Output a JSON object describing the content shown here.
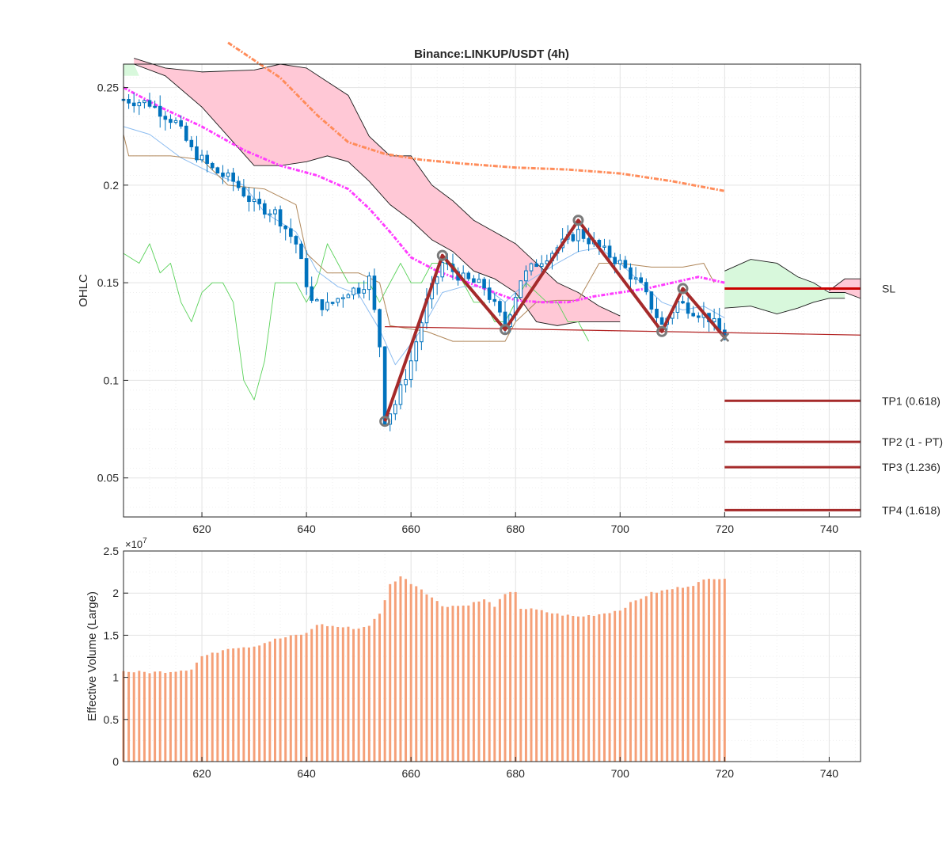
{
  "chart_data": [
    {
      "type": "candlestick",
      "title": "Binance:LINKUP/USDT (4h)",
      "ylabel": "OHLC",
      "xlim": [
        605,
        746
      ],
      "ylim": [
        0.03,
        0.262
      ],
      "x_ticks": [
        620,
        640,
        660,
        680,
        700,
        720,
        740
      ],
      "y_ticks": [
        0.05,
        0.1,
        0.15,
        0.2,
        0.25
      ],
      "y_tick_labels": [
        "0.05",
        "0.1",
        "0.15",
        "0.2",
        "0.25"
      ],
      "grid": true,
      "candle_x_range": [
        605,
        720
      ],
      "price_path": [
        [
          605,
          0.244
        ],
        [
          610,
          0.242
        ],
        [
          615,
          0.232
        ],
        [
          618,
          0.218
        ],
        [
          622,
          0.208
        ],
        [
          626,
          0.202
        ],
        [
          630,
          0.19
        ],
        [
          634,
          0.186
        ],
        [
          638,
          0.17
        ],
        [
          641,
          0.14
        ],
        [
          644,
          0.138
        ],
        [
          648,
          0.146
        ],
        [
          650,
          0.147
        ],
        [
          652,
          0.152
        ],
        [
          654,
          0.118
        ],
        [
          655,
          0.08
        ],
        [
          657,
          0.088
        ],
        [
          660,
          0.11
        ],
        [
          663,
          0.14
        ],
        [
          666,
          0.16
        ],
        [
          670,
          0.152
        ],
        [
          674,
          0.148
        ],
        [
          678,
          0.128
        ],
        [
          681,
          0.152
        ],
        [
          684,
          0.16
        ],
        [
          688,
          0.168
        ],
        [
          692,
          0.176
        ],
        [
          696,
          0.168
        ],
        [
          700,
          0.16
        ],
        [
          704,
          0.148
        ],
        [
          708,
          0.128
        ],
        [
          711,
          0.14
        ],
        [
          714,
          0.136
        ],
        [
          717,
          0.132
        ],
        [
          720,
          0.122
        ]
      ],
      "zigzag": [
        [
          655,
          0.079
        ],
        [
          666,
          0.164
        ],
        [
          678,
          0.126
        ],
        [
          692,
          0.182
        ],
        [
          708,
          0.125
        ],
        [
          712,
          0.147
        ],
        [
          720,
          0.122
        ]
      ],
      "trendline": [
        [
          655,
          0.1275
        ],
        [
          746,
          0.1232
        ]
      ],
      "levels": [
        {
          "label": "SL",
          "value": 0.147
        },
        {
          "label": "TP1 (0.618)",
          "value": 0.0895
        },
        {
          "label": "TP2 (1 - PT)",
          "value": 0.0685
        },
        {
          "label": "TP3 (1.236)",
          "value": 0.0555
        },
        {
          "label": "TP4 (1.618)",
          "value": 0.0335
        }
      ],
      "level_x_range": [
        720,
        746
      ],
      "ma_slow": [
        [
          625,
          0.273
        ],
        [
          635,
          0.255
        ],
        [
          642,
          0.236
        ],
        [
          648,
          0.222
        ],
        [
          655,
          0.216
        ],
        [
          662,
          0.213
        ],
        [
          670,
          0.211
        ],
        [
          680,
          0.209
        ],
        [
          690,
          0.208
        ],
        [
          700,
          0.206
        ],
        [
          710,
          0.202
        ],
        [
          720,
          0.197
        ]
      ],
      "ma_mid": [
        [
          605,
          0.25
        ],
        [
          612,
          0.24
        ],
        [
          620,
          0.23
        ],
        [
          628,
          0.218
        ],
        [
          635,
          0.21
        ],
        [
          642,
          0.205
        ],
        [
          648,
          0.198
        ],
        [
          652,
          0.188
        ],
        [
          656,
          0.176
        ],
        [
          660,
          0.163
        ],
        [
          665,
          0.156
        ],
        [
          670,
          0.151
        ],
        [
          675,
          0.146
        ],
        [
          680,
          0.141
        ],
        [
          685,
          0.14
        ],
        [
          690,
          0.14
        ],
        [
          695,
          0.143
        ],
        [
          700,
          0.145
        ],
        [
          705,
          0.147
        ],
        [
          710,
          0.15
        ],
        [
          715,
          0.153
        ],
        [
          720,
          0.15
        ]
      ],
      "kijun": [
        [
          605,
          0.226
        ],
        [
          606,
          0.215
        ],
        [
          614,
          0.215
        ],
        [
          620,
          0.213
        ],
        [
          625,
          0.2
        ],
        [
          632,
          0.198
        ],
        [
          638,
          0.19
        ],
        [
          640,
          0.165
        ],
        [
          644,
          0.155
        ],
        [
          650,
          0.155
        ],
        [
          654,
          0.15
        ],
        [
          656,
          0.128
        ],
        [
          663,
          0.125
        ],
        [
          668,
          0.12
        ],
        [
          678,
          0.12
        ],
        [
          680,
          0.13
        ],
        [
          684,
          0.14
        ],
        [
          688,
          0.141
        ],
        [
          692,
          0.141
        ],
        [
          696,
          0.16
        ],
        [
          700,
          0.16
        ],
        [
          706,
          0.158
        ],
        [
          712,
          0.158
        ],
        [
          716,
          0.16
        ],
        [
          718,
          0.15
        ]
      ],
      "tenkan": [
        [
          605,
          0.23
        ],
        [
          610,
          0.226
        ],
        [
          616,
          0.214
        ],
        [
          622,
          0.206
        ],
        [
          628,
          0.2
        ],
        [
          632,
          0.186
        ],
        [
          638,
          0.176
        ],
        [
          642,
          0.156
        ],
        [
          646,
          0.148
        ],
        [
          650,
          0.144
        ],
        [
          654,
          0.126
        ],
        [
          657,
          0.108
        ],
        [
          662,
          0.126
        ],
        [
          666,
          0.145
        ],
        [
          670,
          0.148
        ],
        [
          674,
          0.148
        ],
        [
          678,
          0.14
        ],
        [
          682,
          0.15
        ],
        [
          688,
          0.16
        ],
        [
          692,
          0.166
        ],
        [
          696,
          0.168
        ],
        [
          700,
          0.16
        ],
        [
          704,
          0.15
        ],
        [
          708,
          0.14
        ],
        [
          712,
          0.136
        ],
        [
          716,
          0.138
        ],
        [
          720,
          0.132
        ]
      ],
      "chikou": [
        [
          605,
          0.165
        ],
        [
          608,
          0.16
        ],
        [
          610,
          0.17
        ],
        [
          612,
          0.155
        ],
        [
          614,
          0.16
        ],
        [
          616,
          0.14
        ],
        [
          618,
          0.13
        ],
        [
          620,
          0.145
        ],
        [
          622,
          0.15
        ],
        [
          624,
          0.15
        ],
        [
          626,
          0.14
        ],
        [
          628,
          0.1
        ],
        [
          630,
          0.09
        ],
        [
          632,
          0.11
        ],
        [
          634,
          0.15
        ],
        [
          636,
          0.15
        ],
        [
          638,
          0.15
        ],
        [
          640,
          0.14
        ],
        [
          642,
          0.15
        ],
        [
          644,
          0.17
        ],
        [
          646,
          0.16
        ],
        [
          648,
          0.15
        ],
        [
          650,
          0.15
        ],
        [
          652,
          0.15
        ],
        [
          654,
          0.14
        ],
        [
          656,
          0.15
        ],
        [
          658,
          0.16
        ],
        [
          660,
          0.15
        ],
        [
          662,
          0.15
        ],
        [
          664,
          0.16
        ],
        [
          666,
          0.16
        ],
        [
          668,
          0.16
        ],
        [
          670,
          0.15
        ],
        [
          672,
          0.14
        ],
        [
          674,
          0.14
        ],
        [
          676,
          0.13
        ],
        [
          678,
          0.13
        ],
        [
          680,
          0.14
        ],
        [
          682,
          0.15
        ],
        [
          684,
          0.145
        ],
        [
          686,
          0.14
        ],
        [
          688,
          0.14
        ],
        [
          690,
          0.13
        ],
        [
          692,
          0.13
        ],
        [
          694,
          0.12
        ]
      ],
      "cloud_bearish": {
        "top": [
          [
            607,
            0.265
          ],
          [
            613,
            0.26
          ],
          [
            620,
            0.258
          ],
          [
            630,
            0.259
          ],
          [
            635,
            0.262
          ],
          [
            640,
            0.26
          ],
          [
            644,
            0.253
          ],
          [
            648,
            0.246
          ],
          [
            652,
            0.225
          ],
          [
            656,
            0.215
          ],
          [
            660,
            0.215
          ],
          [
            664,
            0.2
          ],
          [
            668,
            0.192
          ],
          [
            672,
            0.182
          ],
          [
            676,
            0.176
          ],
          [
            680,
            0.17
          ],
          [
            684,
            0.16
          ],
          [
            688,
            0.15
          ],
          [
            692,
            0.145
          ],
          [
            696,
            0.138
          ],
          [
            700,
            0.133
          ]
        ],
        "bottom": [
          [
            607,
            0.262
          ],
          [
            613,
            0.256
          ],
          [
            620,
            0.24
          ],
          [
            625,
            0.225
          ],
          [
            630,
            0.21
          ],
          [
            635,
            0.21
          ],
          [
            640,
            0.212
          ],
          [
            644,
            0.215
          ],
          [
            648,
            0.212
          ],
          [
            652,
            0.202
          ],
          [
            656,
            0.19
          ],
          [
            660,
            0.182
          ],
          [
            664,
            0.172
          ],
          [
            668,
            0.166
          ],
          [
            672,
            0.156
          ],
          [
            676,
            0.152
          ],
          [
            680,
            0.145
          ],
          [
            684,
            0.13
          ],
          [
            688,
            0.128
          ],
          [
            692,
            0.13
          ],
          [
            696,
            0.13
          ],
          [
            700,
            0.13
          ]
        ]
      },
      "cloud_bullish": {
        "top": [
          [
            720,
            0.156
          ],
          [
            725,
            0.162
          ],
          [
            730,
            0.16
          ],
          [
            734,
            0.153
          ],
          [
            737,
            0.15
          ],
          [
            740,
            0.145
          ],
          [
            743,
            0.145
          ]
        ],
        "bottom": [
          [
            720,
            0.137
          ],
          [
            725,
            0.138
          ],
          [
            730,
            0.134
          ],
          [
            734,
            0.137
          ],
          [
            737,
            0.14
          ],
          [
            740,
            0.142
          ],
          [
            743,
            0.142
          ]
        ]
      },
      "cloud_bearish_tail": {
        "top": [
          [
            740,
            0.146
          ],
          [
            743,
            0.152
          ],
          [
            746,
            0.152
          ]
        ],
        "bottom": [
          [
            740,
            0.145
          ],
          [
            743,
            0.145
          ],
          [
            746,
            0.142
          ]
        ]
      },
      "colors": {
        "candle": "#0072bd",
        "zigzag": "#a52a2a",
        "level": "#cc0000",
        "trendline": "#b22222",
        "ma_slow": "#ff8c5a",
        "ma_mid": "#ff3cff",
        "kijun": "#b0875a",
        "tenkan": "#8cbcf0",
        "chikou": "#5ad25a",
        "cloud_bearish": "#ffc8d6",
        "cloud_bullish": "#d8f8dc"
      }
    },
    {
      "type": "bar",
      "ylabel": "Effective Volume (Large)",
      "y_multiplier": "×10^7",
      "xlim": [
        605,
        746
      ],
      "ylim": [
        0,
        2.5
      ],
      "x_ticks": [
        620,
        640,
        660,
        680,
        700,
        720,
        740
      ],
      "y_ticks": [
        0,
        0.5,
        1,
        1.5,
        2,
        2.5
      ],
      "y_tick_labels": [
        "0",
        "0.5",
        "1",
        "1.5",
        "2",
        "2.5"
      ],
      "bar_x_range": [
        605,
        720
      ],
      "volume_profile": [
        [
          605,
          1.07
        ],
        [
          610,
          1.06
        ],
        [
          614,
          1.07
        ],
        [
          618,
          1.1
        ],
        [
          620,
          1.25
        ],
        [
          622,
          1.28
        ],
        [
          625,
          1.35
        ],
        [
          630,
          1.37
        ],
        [
          634,
          1.45
        ],
        [
          638,
          1.5
        ],
        [
          640,
          1.52
        ],
        [
          642,
          1.63
        ],
        [
          646,
          1.6
        ],
        [
          650,
          1.58
        ],
        [
          652,
          1.62
        ],
        [
          654,
          1.75
        ],
        [
          656,
          2.1
        ],
        [
          658,
          2.2
        ],
        [
          660,
          2.12
        ],
        [
          662,
          2.05
        ],
        [
          664,
          1.95
        ],
        [
          666,
          1.85
        ],
        [
          670,
          1.85
        ],
        [
          674,
          1.92
        ],
        [
          676,
          1.85
        ],
        [
          678,
          1.98
        ],
        [
          680,
          2.02
        ],
        [
          681,
          1.82
        ],
        [
          684,
          1.8
        ],
        [
          688,
          1.75
        ],
        [
          692,
          1.72
        ],
        [
          696,
          1.75
        ],
        [
          700,
          1.8
        ],
        [
          702,
          1.88
        ],
        [
          706,
          2.0
        ],
        [
          710,
          2.05
        ],
        [
          714,
          2.1
        ],
        [
          716,
          2.15
        ],
        [
          718,
          2.18
        ],
        [
          720,
          2.18
        ]
      ],
      "colors": {
        "bar": "#f5a078"
      }
    }
  ]
}
